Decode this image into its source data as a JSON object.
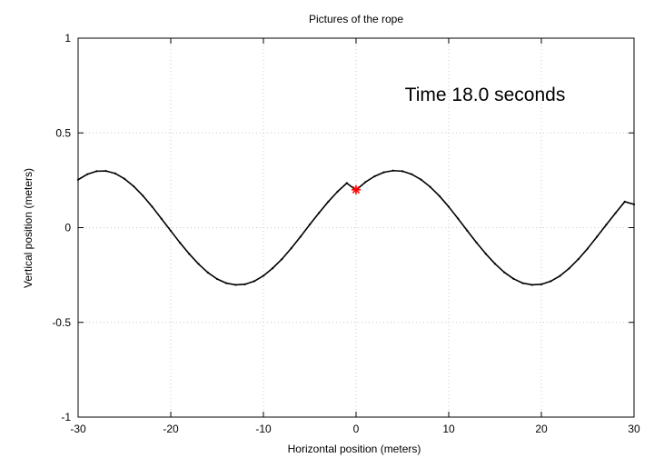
{
  "chart_data": {
    "type": "line",
    "title": "Pictures of the rope",
    "xlabel": "Horizontal position (meters)",
    "ylabel": "Vertical position (meters)",
    "annotation": "Time 18.0 seconds",
    "xlim": [
      -30,
      30
    ],
    "ylim": [
      -1,
      1
    ],
    "xticks": [
      -30,
      -20,
      -10,
      0,
      10,
      20,
      30
    ],
    "yticks": [
      -1,
      -0.5,
      0,
      0.5,
      1
    ],
    "xtick_labels": [
      "-30",
      "-20",
      "-10",
      "0",
      "10",
      "20",
      "30"
    ],
    "ytick_labels": [
      "-1",
      "-0.5",
      "0",
      "0.5",
      "1"
    ],
    "grid": true,
    "series": [
      {
        "color": "#000000",
        "x": [
          -30,
          -29,
          -28,
          -27,
          -26,
          -25,
          -24,
          -23,
          -22,
          -21,
          -20,
          -19,
          -18,
          -17,
          -16,
          -15,
          -14,
          -13,
          -12,
          -11,
          -10,
          -9,
          -8,
          -7,
          -6,
          -5,
          -4,
          -3,
          -2,
          -1,
          0,
          1,
          2,
          3,
          4,
          5,
          6,
          7,
          8,
          9,
          10,
          11,
          12,
          13,
          14,
          15,
          16,
          17,
          18,
          19,
          20,
          21,
          22,
          23,
          24,
          25,
          26,
          27,
          28,
          29,
          30
        ],
        "y": [
          0.253,
          0.282,
          0.298,
          0.299,
          0.286,
          0.258,
          0.218,
          0.168,
          0.11,
          0.047,
          -0.017,
          -0.08,
          -0.139,
          -0.192,
          -0.237,
          -0.271,
          -0.293,
          -0.302,
          -0.299,
          -0.283,
          -0.254,
          -0.214,
          -0.166,
          -0.109,
          -0.048,
          0.016,
          0.078,
          0.137,
          0.19,
          0.235,
          0.198,
          0.24,
          0.271,
          0.292,
          0.301,
          0.298,
          0.282,
          0.254,
          0.215,
          0.167,
          0.11,
          0.048,
          -0.016,
          -0.079,
          -0.138,
          -0.191,
          -0.236,
          -0.27,
          -0.293,
          -0.302,
          -0.299,
          -0.283,
          -0.255,
          -0.215,
          -0.166,
          -0.11,
          -0.048,
          0.015,
          0.077,
          0.137,
          0.123
        ]
      }
    ],
    "marker": {
      "x": 0,
      "y": 0.2,
      "color": "#ff0000",
      "symbol": "asterisk"
    }
  }
}
